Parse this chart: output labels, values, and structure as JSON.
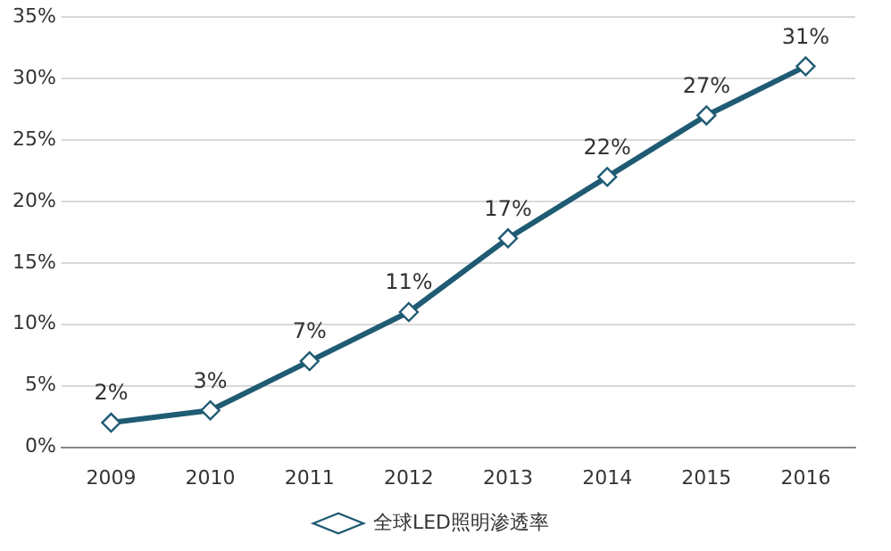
{
  "chart_data": {
    "type": "line",
    "categories": [
      "2009",
      "2010",
      "2011",
      "2012",
      "2013",
      "2014",
      "2015",
      "2016"
    ],
    "series": [
      {
        "name": "全球LED照明渗透率",
        "color": "#1f5b73",
        "values": [
          2,
          3,
          7,
          11,
          17,
          22,
          27,
          31
        ],
        "value_labels": [
          "2%",
          "3%",
          "7%",
          "11%",
          "17%",
          "22%",
          "27%",
          "31%"
        ]
      }
    ],
    "ylim": [
      0,
      35
    ],
    "yticks": [
      {
        "value": 0,
        "label": "0%"
      },
      {
        "value": 5,
        "label": "5%"
      },
      {
        "value": 10,
        "label": "10%"
      },
      {
        "value": 15,
        "label": "15%"
      },
      {
        "value": 20,
        "label": "20%"
      },
      {
        "value": 25,
        "label": "25%"
      },
      {
        "value": 30,
        "label": "30%"
      },
      {
        "value": 35,
        "label": "35%"
      }
    ],
    "grid": "y",
    "legend": "bottom",
    "marker": "diamond",
    "line_style": "solid"
  }
}
